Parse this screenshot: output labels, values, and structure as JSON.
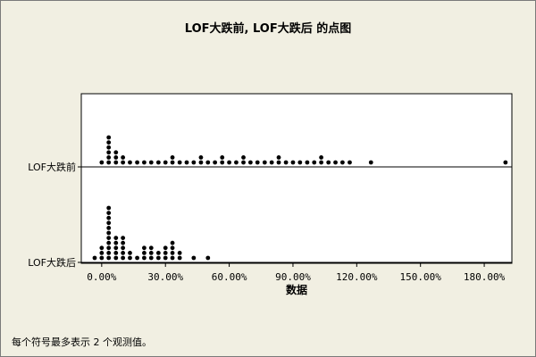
{
  "chart_data": {
    "type": "dotplot",
    "title": "LOF大跌前, LOF大跌后 的点图",
    "xlabel": "数据",
    "x_ticks": [
      "0.00%",
      "30.00%",
      "60.00%",
      "90.00%",
      "120.00%",
      "150.00%",
      "180.00%"
    ],
    "xlim": [
      -9.6,
      193
    ],
    "symbol_note": "每个符号最多表示 2 个观测值。",
    "grid": false,
    "groups": [
      {
        "label": "LOF大跌前",
        "stacks": [
          {
            "x": 0,
            "count": 1
          },
          {
            "x": 3.3,
            "count": 6
          },
          {
            "x": 6.7,
            "count": 3
          },
          {
            "x": 10,
            "count": 2
          },
          {
            "x": 13.3,
            "count": 1
          },
          {
            "x": 16.7,
            "count": 1
          },
          {
            "x": 20,
            "count": 1
          },
          {
            "x": 23.3,
            "count": 1
          },
          {
            "x": 26.7,
            "count": 1
          },
          {
            "x": 30,
            "count": 1
          },
          {
            "x": 33.3,
            "count": 2
          },
          {
            "x": 36.7,
            "count": 1
          },
          {
            "x": 40,
            "count": 1
          },
          {
            "x": 43.3,
            "count": 1
          },
          {
            "x": 46.7,
            "count": 2
          },
          {
            "x": 50,
            "count": 1
          },
          {
            "x": 53.3,
            "count": 1
          },
          {
            "x": 56.7,
            "count": 2
          },
          {
            "x": 60,
            "count": 1
          },
          {
            "x": 63.3,
            "count": 1
          },
          {
            "x": 66.7,
            "count": 2
          },
          {
            "x": 70,
            "count": 1
          },
          {
            "x": 73.3,
            "count": 1
          },
          {
            "x": 76.7,
            "count": 1
          },
          {
            "x": 80,
            "count": 1
          },
          {
            "x": 83.3,
            "count": 2
          },
          {
            "x": 86.7,
            "count": 1
          },
          {
            "x": 90,
            "count": 1
          },
          {
            "x": 93.3,
            "count": 1
          },
          {
            "x": 96.7,
            "count": 1
          },
          {
            "x": 100,
            "count": 1
          },
          {
            "x": 103.3,
            "count": 2
          },
          {
            "x": 106.7,
            "count": 1
          },
          {
            "x": 110,
            "count": 1
          },
          {
            "x": 113.3,
            "count": 1
          },
          {
            "x": 116.7,
            "count": 1
          },
          {
            "x": 126.7,
            "count": 1
          },
          {
            "x": 190,
            "count": 1
          }
        ]
      },
      {
        "label": "LOF大跌后",
        "stacks": [
          {
            "x": -3.3,
            "count": 1
          },
          {
            "x": 0,
            "count": 3
          },
          {
            "x": 3.3,
            "count": 11
          },
          {
            "x": 6.7,
            "count": 5
          },
          {
            "x": 10,
            "count": 5
          },
          {
            "x": 13.3,
            "count": 2
          },
          {
            "x": 16.7,
            "count": 1
          },
          {
            "x": 20,
            "count": 3
          },
          {
            "x": 23.3,
            "count": 3
          },
          {
            "x": 26.7,
            "count": 2
          },
          {
            "x": 30,
            "count": 3
          },
          {
            "x": 33.3,
            "count": 4
          },
          {
            "x": 36.7,
            "count": 2
          },
          {
            "x": 43.3,
            "count": 1
          },
          {
            "x": 50,
            "count": 1
          }
        ]
      }
    ]
  }
}
